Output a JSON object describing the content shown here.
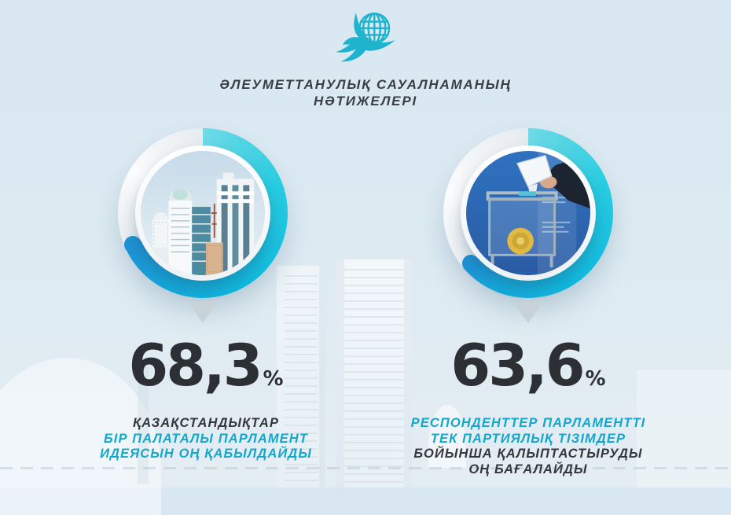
{
  "meta": {
    "accent_teal": "#13a7cc",
    "ring_cyan": "#15c2da",
    "ring_blue_end": "#1d93d6",
    "dark_text": "#34373c",
    "background": "#dceaf2",
    "pointer_gray": "#c8d2d9"
  },
  "header": {
    "logo_icon": "dove-globe-icon",
    "title_line1": "ӘЛЕУМЕТТАНУЛЫҚ САУАЛНАМАНЫҢ",
    "title_line2": "НӘТИЖЕЛЕРІ"
  },
  "stats": [
    {
      "value": "68,3",
      "percent_sign": "%",
      "percent_value": 68.3,
      "image": "astana-parliament-buildings-photo",
      "lines": [
        {
          "text": "ҚАЗАҚСТАНДЫҚТАР",
          "color": "dark"
        },
        {
          "text": "БІР ПАЛАТАЛЫ ПАРЛАМЕНТ",
          "color": "teal"
        },
        {
          "text": "ИДЕЯСЫН ОҢ ҚАБЫЛДАЙДЫ",
          "color": "teal"
        }
      ]
    },
    {
      "value": "63,6",
      "percent_sign": "%",
      "percent_value": 63.6,
      "image": "ballot-box-voting-photo",
      "lines": [
        {
          "text": "РЕСПОНДЕНТТЕР ПАРЛАМЕНТТІ",
          "color": "teal"
        },
        {
          "text": "ТЕК ПАРТИЯЛЫҚ ТІЗІМДЕР",
          "color": "teal"
        },
        {
          "text": "БОЙЫНША ҚАЛЫПТАСТЫРУДЫ",
          "color": "dark"
        },
        {
          "text": "ОҢ БАҒАЛАЙДЫ",
          "color": "dark"
        }
      ]
    }
  ],
  "chart_data": {
    "type": "pie",
    "subtype": "two-donut-infographic",
    "title": "ӘЛЕУМЕТТАНУЛЫҚ САУАЛНАМАНЫҢ НӘТИЖЕЛЕРІ",
    "unit": "%",
    "series": [
      {
        "name": "ҚАЗАҚСТАНДЫҚТАР БІР ПАЛАТАЛЫ ПАРЛАМЕНТ ИДЕЯСЫН ОҢ ҚАБЫЛДАЙДЫ",
        "value": 68.3,
        "remainder": 31.7
      },
      {
        "name": "РЕСПОНДЕНТТЕР ПАРЛАМЕНТТІ ТЕК ПАРТИЯЛЫҚ ТІЗІМДЕР БОЙЫНША ҚАЛЫПТАСТЫРУДЫ ОҢ БАҒАЛАЙДЫ",
        "value": 63.6,
        "remainder": 36.4
      }
    ],
    "legend_position": "below-each-donut",
    "value_labels": [
      "68,3%",
      "63,6%"
    ]
  }
}
